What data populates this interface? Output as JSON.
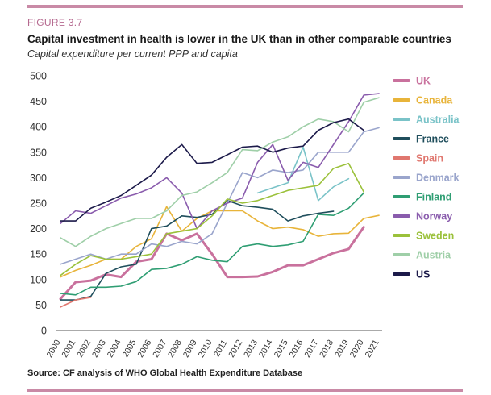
{
  "header": {
    "figure_label": "FIGURE 3.7",
    "title": "Capital investment in health is lower in the UK than in other comparable countries",
    "subtitle": "Capital expenditure per current PPP and capita"
  },
  "footer": {
    "source": "Source: CF analysis of WHO Global Health Expenditure Database"
  },
  "chart_data": {
    "type": "line",
    "title": "Capital investment in health is lower in the UK than in other comparable countries",
    "subtitle": "Capital expenditure per current PPP and capita",
    "xlabel": "",
    "ylabel": "",
    "x": [
      "2000",
      "2001",
      "2002",
      "2003",
      "2004",
      "2005",
      "2006",
      "2007",
      "2008",
      "2009",
      "2010",
      "2011",
      "2012",
      "2013",
      "2014",
      "2015",
      "2016",
      "2017",
      "2018",
      "2019",
      "2020",
      "2021"
    ],
    "ylim": [
      0,
      500
    ],
    "yticks": [
      "0",
      "50",
      "100",
      "150",
      "200",
      "250",
      "300",
      "350",
      "400",
      "450",
      "500"
    ],
    "grid": false,
    "legend_position": "right",
    "series": [
      {
        "name": "UK",
        "color": "#c9719d",
        "width": 3,
        "values": [
          62,
          95,
          98,
          110,
          105,
          135,
          140,
          190,
          177,
          190,
          150,
          105,
          105,
          106,
          115,
          128,
          128,
          140,
          152,
          160,
          203,
          null
        ]
      },
      {
        "name": "Canada",
        "color": "#e8b43a",
        "width": 1.6,
        "values": [
          105,
          118,
          128,
          140,
          140,
          165,
          180,
          243,
          195,
          220,
          235,
          235,
          235,
          215,
          200,
          203,
          198,
          185,
          190,
          191,
          220,
          226
        ]
      },
      {
        "name": "Australia",
        "color": "#7ac3c8",
        "width": 1.6,
        "values": [
          null,
          null,
          null,
          null,
          null,
          null,
          null,
          null,
          null,
          null,
          null,
          null,
          null,
          270,
          280,
          290,
          360,
          255,
          282,
          298,
          null,
          null
        ]
      },
      {
        "name": "France",
        "color": "#1f4e5c",
        "width": 1.6,
        "values": [
          60,
          60,
          67,
          112,
          125,
          130,
          200,
          205,
          225,
          222,
          228,
          255,
          245,
          242,
          238,
          215,
          225,
          230,
          234,
          null,
          null,
          null
        ]
      },
      {
        "name": "Spain",
        "color": "#e0776f",
        "width": 1.6,
        "values": [
          46,
          60,
          65,
          null,
          null,
          null,
          null,
          null,
          null,
          null,
          null,
          null,
          null,
          null,
          null,
          null,
          null,
          null,
          null,
          null,
          null,
          null
        ]
      },
      {
        "name": "Denmark",
        "color": "#9aa5cc",
        "width": 1.6,
        "values": [
          130,
          140,
          150,
          140,
          150,
          150,
          170,
          165,
          175,
          170,
          190,
          250,
          310,
          300,
          315,
          310,
          315,
          350,
          350,
          350,
          390,
          398
        ]
      },
      {
        "name": "Finland",
        "color": "#2f9e73",
        "width": 1.6,
        "values": [
          73,
          70,
          85,
          85,
          87,
          96,
          120,
          122,
          130,
          145,
          138,
          135,
          165,
          170,
          165,
          168,
          175,
          228,
          226,
          240,
          270,
          null
        ]
      },
      {
        "name": "Norway",
        "color": "#8a5cad",
        "width": 1.6,
        "values": [
          210,
          235,
          230,
          245,
          260,
          268,
          280,
          300,
          270,
          200,
          235,
          250,
          260,
          330,
          365,
          295,
          330,
          320,
          365,
          410,
          462,
          465
        ]
      },
      {
        "name": "Sweden",
        "color": "#9bc13b",
        "width": 1.6,
        "values": [
          108,
          130,
          147,
          140,
          140,
          145,
          150,
          190,
          195,
          200,
          225,
          258,
          250,
          255,
          265,
          275,
          280,
          285,
          318,
          328,
          272,
          null
        ]
      },
      {
        "name": "Austria",
        "color": "#9fcfa8",
        "width": 1.6,
        "values": [
          182,
          165,
          185,
          200,
          210,
          220,
          220,
          235,
          265,
          272,
          290,
          310,
          355,
          353,
          370,
          380,
          400,
          415,
          410,
          390,
          448,
          457
        ]
      },
      {
        "name": "US",
        "color": "#1c1a4a",
        "width": 1.6,
        "values": [
          215,
          215,
          240,
          252,
          265,
          285,
          305,
          340,
          365,
          328,
          330,
          345,
          360,
          362,
          350,
          358,
          362,
          393,
          408,
          415,
          393,
          null
        ]
      }
    ]
  }
}
